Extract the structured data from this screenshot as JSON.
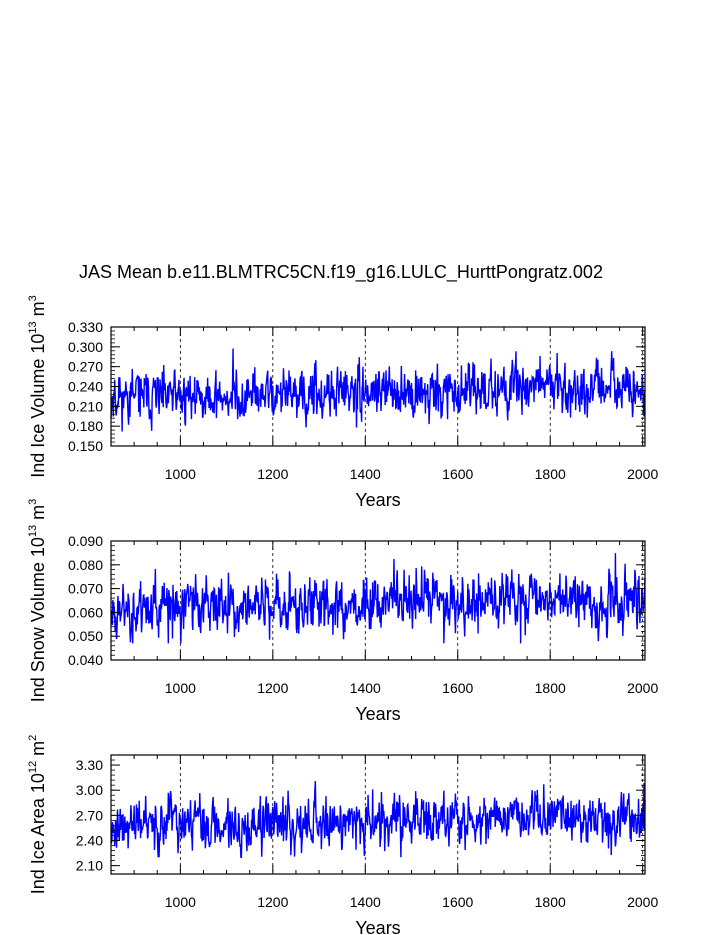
{
  "chart_data": [
    {
      "type": "line",
      "title": "JAS Mean b.e11.BLMTRC5CN.f19_g16.LULC_HurttPongratz.002",
      "ylabel_text": "Ind Ice Volume 10",
      "ylabel_exp": "13",
      "ylabel_unit": " m",
      "ylabel_unit_exp": "3",
      "xlabel": "Years",
      "xlim": [
        850,
        2005
      ],
      "ylim": [
        0.15,
        0.33
      ],
      "x_ticks": [
        1000,
        1200,
        1400,
        1600,
        1800,
        2000
      ],
      "x_tick_labels": [
        "1000",
        "1200",
        "1400",
        "1600",
        "1800",
        "2000"
      ],
      "y_ticks": [
        0.15,
        0.18,
        0.21,
        0.24,
        0.27,
        0.3,
        0.33
      ],
      "y_tick_labels": [
        "0.150",
        "0.180",
        "0.210",
        "0.240",
        "0.270",
        "0.300",
        "0.330"
      ],
      "grid": "vertical-dashed",
      "color": "#0000ff",
      "series": {
        "name": "Ind Ice Volume",
        "x_start": 850,
        "x_end": 2005,
        "mean": 0.23,
        "std": 0.018,
        "trend": [
          [
            850,
            0.225
          ],
          [
            1300,
            0.225
          ],
          [
            1400,
            0.232
          ],
          [
            1500,
            0.235
          ],
          [
            1600,
            0.228
          ],
          [
            1750,
            0.245
          ],
          [
            1850,
            0.238
          ],
          [
            2005,
            0.235
          ]
        ],
        "seed": 11,
        "min": 0.17,
        "max": 0.3
      }
    },
    {
      "type": "line",
      "ylabel_text": "Ind Snow Volume 10",
      "ylabel_exp": "13",
      "ylabel_unit": " m",
      "ylabel_unit_exp": "3",
      "xlabel": "Years",
      "xlim": [
        850,
        2005
      ],
      "ylim": [
        0.04,
        0.09
      ],
      "x_ticks": [
        1000,
        1200,
        1400,
        1600,
        1800,
        2000
      ],
      "x_tick_labels": [
        "1000",
        "1200",
        "1400",
        "1600",
        "1800",
        "2000"
      ],
      "y_ticks": [
        0.04,
        0.05,
        0.06,
        0.07,
        0.08,
        0.09
      ],
      "y_tick_labels": [
        "0.040",
        "0.050",
        "0.060",
        "0.070",
        "0.080",
        "0.090"
      ],
      "grid": "vertical-dashed",
      "color": "#0000ff",
      "series": {
        "name": "Ind Snow Volume",
        "x_start": 850,
        "x_end": 2005,
        "mean": 0.063,
        "std": 0.0055,
        "trend": [
          [
            850,
            0.062
          ],
          [
            1300,
            0.063
          ],
          [
            1450,
            0.066
          ],
          [
            1600,
            0.064
          ],
          [
            1750,
            0.067
          ],
          [
            1900,
            0.065
          ],
          [
            2005,
            0.066
          ]
        ],
        "seed": 23,
        "min": 0.047,
        "max": 0.088
      }
    },
    {
      "type": "line",
      "ylabel_text": "Ind Ice Area 10",
      "ylabel_exp": "12",
      "ylabel_unit": " m",
      "ylabel_unit_exp": "2",
      "xlabel": "Years",
      "xlim": [
        850,
        2005
      ],
      "ylim": [
        2.0,
        3.42
      ],
      "x_ticks": [
        1000,
        1200,
        1400,
        1600,
        1800,
        2000
      ],
      "x_tick_labels": [
        "1000",
        "1200",
        "1400",
        "1600",
        "1800",
        "2000"
      ],
      "y_ticks": [
        2.1,
        2.4,
        2.7,
        3.0,
        3.3
      ],
      "y_tick_labels": [
        "2.10",
        "2.40",
        "2.70",
        "3.00",
        "3.30"
      ],
      "grid": "vertical-dashed",
      "color": "#0000ff",
      "series": {
        "name": "Ind Ice Area",
        "x_start": 850,
        "x_end": 2005,
        "mean": 2.62,
        "std": 0.14,
        "trend": [
          [
            850,
            2.58
          ],
          [
            1300,
            2.6
          ],
          [
            1450,
            2.66
          ],
          [
            1600,
            2.64
          ],
          [
            1750,
            2.7
          ],
          [
            1900,
            2.63
          ],
          [
            2005,
            2.66
          ]
        ],
        "seed": 37,
        "min": 2.2,
        "max": 3.22
      }
    }
  ]
}
